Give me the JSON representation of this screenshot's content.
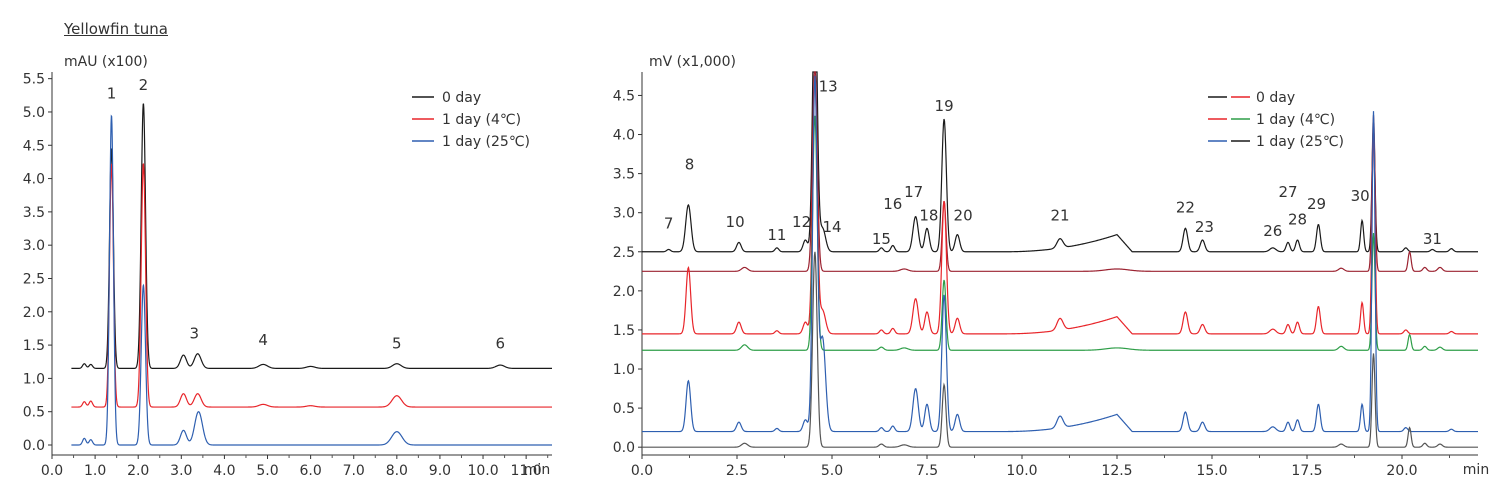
{
  "figure_title": "Yellowfin tuna",
  "chart_data": [
    {
      "type": "line",
      "ylabel": "mAU (x100)",
      "x_unit": "min",
      "xlim": [
        0.0,
        11.6
      ],
      "ylim": [
        -0.15,
        5.6
      ],
      "x_ticks": [
        "0.0",
        "1.0",
        "2.0",
        "3.0",
        "4.0",
        "5.0",
        "6.0",
        "7.0",
        "8.0",
        "9.0",
        "10.0",
        "11.0"
      ],
      "y_ticks": [
        "0.0",
        "0.5",
        "1.0",
        "1.5",
        "2.0",
        "2.5",
        "3.0",
        "3.5",
        "4.0",
        "4.5",
        "5.0",
        "5.5"
      ],
      "legend": {
        "position": "top-right",
        "entries": [
          {
            "label": "0 day",
            "color": "#1a1a1a"
          },
          {
            "label": "1 day (4℃)",
            "color": "#e8252a"
          },
          {
            "label": "1 day (25℃)",
            "color": "#2e5fb0"
          }
        ]
      },
      "peak_labels": [
        {
          "text": "1",
          "x": 1.38,
          "y": 5.2
        },
        {
          "text": "2",
          "x": 2.12,
          "y": 5.33
        },
        {
          "text": "3",
          "x": 3.3,
          "y": 1.6
        },
        {
          "text": "4",
          "x": 4.9,
          "y": 1.5
        },
        {
          "text": "5",
          "x": 8.0,
          "y": 1.45
        },
        {
          "text": "6",
          "x": 10.4,
          "y": 1.45
        }
      ],
      "series": [
        {
          "name": "0 day",
          "color": "#1a1a1a",
          "baseline": 1.15,
          "x_start": 0.45,
          "x_end": 11.6,
          "peaks": [
            [
              0.75,
              0.07,
              0.04
            ],
            [
              0.9,
              0.06,
              0.04
            ],
            [
              1.38,
              3.3,
              0.045
            ],
            [
              2.12,
              3.98,
              0.05
            ],
            [
              3.05,
              0.2,
              0.07
            ],
            [
              3.38,
              0.22,
              0.08
            ],
            [
              4.9,
              0.06,
              0.1
            ],
            [
              6.0,
              0.03,
              0.1
            ],
            [
              8.0,
              0.07,
              0.1
            ],
            [
              10.4,
              0.05,
              0.1
            ]
          ]
        },
        {
          "name": "1 day (4℃)",
          "color": "#e8252a",
          "baseline": 0.57,
          "x_start": 0.45,
          "x_end": 11.6,
          "peaks": [
            [
              0.75,
              0.08,
              0.04
            ],
            [
              0.9,
              0.09,
              0.04
            ],
            [
              1.38,
              3.65,
              0.045
            ],
            [
              2.12,
              3.66,
              0.05
            ],
            [
              3.05,
              0.2,
              0.07
            ],
            [
              3.38,
              0.2,
              0.08
            ],
            [
              4.9,
              0.04,
              0.1
            ],
            [
              6.0,
              0.02,
              0.1
            ],
            [
              8.0,
              0.17,
              0.11
            ]
          ]
        },
        {
          "name": "1 day (25℃)",
          "color": "#2e5fb0",
          "baseline": 0.0,
          "x_start": 0.45,
          "x_end": 11.6,
          "peaks": [
            [
              0.75,
              0.1,
              0.04
            ],
            [
              0.9,
              0.08,
              0.04
            ],
            [
              1.38,
              4.95,
              0.045
            ],
            [
              2.12,
              2.4,
              0.05
            ],
            [
              3.05,
              0.22,
              0.07
            ],
            [
              3.4,
              0.5,
              0.09
            ],
            [
              8.0,
              0.2,
              0.12
            ]
          ]
        }
      ]
    },
    {
      "type": "line",
      "ylabel": "mV (x1,000)",
      "x_unit": "min",
      "xlim": [
        0.0,
        22.0
      ],
      "ylim": [
        -0.1,
        4.8
      ],
      "x_ticks": [
        "0.0",
        "2.5",
        "5.0",
        "7.5",
        "10.0",
        "12.5",
        "15.0",
        "17.5",
        "20.0"
      ],
      "y_ticks": [
        "0.0",
        "0.5",
        "1.0",
        "1.5",
        "2.0",
        "2.5",
        "3.0",
        "3.5",
        "4.0",
        "4.5"
      ],
      "legend": {
        "position": "top-right",
        "entries": [
          {
            "label": "0 day",
            "colors": [
              "#1a1a1a",
              "#e8252a"
            ]
          },
          {
            "label": "1 day (4℃)",
            "colors": [
              "#e8252a",
              "#2e9e48"
            ]
          },
          {
            "label": "1 day (25℃)",
            "colors": [
              "#2e5fb0",
              "#1a1a1a"
            ]
          }
        ]
      },
      "peak_labels": [
        {
          "text": "7",
          "x": 0.7,
          "y": 2.8
        },
        {
          "text": "8",
          "x": 1.25,
          "y": 3.55
        },
        {
          "text": "10",
          "x": 2.45,
          "y": 2.82
        },
        {
          "text": "11",
          "x": 3.55,
          "y": 2.65
        },
        {
          "text": "12",
          "x": 4.2,
          "y": 2.82
        },
        {
          "text": "13",
          "x": 4.9,
          "y": 4.55
        },
        {
          "text": "14",
          "x": 5.0,
          "y": 2.75
        },
        {
          "text": "15",
          "x": 6.3,
          "y": 2.6
        },
        {
          "text": "16",
          "x": 6.6,
          "y": 3.05
        },
        {
          "text": "17",
          "x": 7.15,
          "y": 3.2
        },
        {
          "text": "18",
          "x": 7.55,
          "y": 2.9
        },
        {
          "text": "19",
          "x": 7.95,
          "y": 4.3
        },
        {
          "text": "20",
          "x": 8.45,
          "y": 2.9
        },
        {
          "text": "21",
          "x": 11.0,
          "y": 2.9
        },
        {
          "text": "22",
          "x": 14.3,
          "y": 3.0
        },
        {
          "text": "23",
          "x": 14.8,
          "y": 2.75
        },
        {
          "text": "26",
          "x": 16.6,
          "y": 2.7
        },
        {
          "text": "27",
          "x": 17.0,
          "y": 3.2
        },
        {
          "text": "28",
          "x": 17.25,
          "y": 2.85
        },
        {
          "text": "29",
          "x": 17.75,
          "y": 3.05
        },
        {
          "text": "30",
          "x": 18.9,
          "y": 3.15
        },
        {
          "text": "31",
          "x": 20.8,
          "y": 2.6
        }
      ],
      "series": [
        {
          "name": "0 day (a)",
          "color": "#1a1a1a",
          "baseline": 2.5,
          "x_start": 0.0,
          "x_end": 22.0,
          "hump": {
            "start": 9.5,
            "peak": 12.5,
            "end": 12.9,
            "height": 0.22
          },
          "peaks": [
            [
              0.7,
              0.03,
              0.05
            ],
            [
              1.22,
              0.6,
              0.07
            ],
            [
              2.55,
              0.12,
              0.06
            ],
            [
              3.55,
              0.05,
              0.05
            ],
            [
              4.3,
              0.15,
              0.06
            ],
            [
              4.55,
              3.5,
              0.06
            ],
            [
              4.75,
              0.3,
              0.08
            ],
            [
              6.3,
              0.05,
              0.05
            ],
            [
              6.6,
              0.08,
              0.05
            ],
            [
              7.2,
              0.45,
              0.07
            ],
            [
              7.5,
              0.3,
              0.06
            ],
            [
              7.95,
              1.7,
              0.06
            ],
            [
              8.3,
              0.22,
              0.06
            ],
            [
              11.0,
              0.12,
              0.08
            ],
            [
              14.3,
              0.3,
              0.06
            ],
            [
              14.75,
              0.15,
              0.06
            ],
            [
              16.6,
              0.05,
              0.08
            ],
            [
              17.0,
              0.12,
              0.05
            ],
            [
              17.25,
              0.15,
              0.05
            ],
            [
              17.8,
              0.35,
              0.05
            ],
            [
              18.95,
              0.4,
              0.04
            ],
            [
              19.25,
              1.6,
              0.04
            ],
            [
              20.1,
              0.05,
              0.05
            ],
            [
              20.8,
              0.03,
              0.05
            ],
            [
              21.3,
              0.04,
              0.05
            ]
          ]
        },
        {
          "name": "0 day (b)",
          "color": "#9b2230",
          "baseline": 2.25,
          "x_start": 0.0,
          "x_end": 22.0,
          "peaks": [
            [
              2.7,
              0.05,
              0.08
            ],
            [
              4.55,
              2.7,
              0.06
            ],
            [
              6.9,
              0.03,
              0.1
            ],
            [
              7.95,
              0.9,
              0.05
            ],
            [
              12.5,
              0.03,
              0.3
            ],
            [
              18.4,
              0.04,
              0.07
            ],
            [
              19.25,
              2.0,
              0.04
            ],
            [
              20.2,
              0.25,
              0.04
            ],
            [
              20.6,
              0.05,
              0.05
            ],
            [
              21.0,
              0.05,
              0.06
            ]
          ]
        },
        {
          "name": "1 day (4℃) (a)",
          "color": "#e8252a",
          "baseline": 1.45,
          "x_start": 0.0,
          "x_end": 22.0,
          "hump": {
            "start": 9.5,
            "peak": 12.5,
            "end": 12.9,
            "height": 0.22
          },
          "peaks": [
            [
              1.22,
              0.85,
              0.06
            ],
            [
              2.55,
              0.15,
              0.06
            ],
            [
              3.55,
              0.04,
              0.05
            ],
            [
              4.3,
              0.15,
              0.06
            ],
            [
              4.55,
              3.3,
              0.06
            ],
            [
              4.75,
              0.3,
              0.08
            ],
            [
              6.3,
              0.05,
              0.05
            ],
            [
              6.6,
              0.07,
              0.05
            ],
            [
              7.2,
              0.45,
              0.07
            ],
            [
              7.5,
              0.28,
              0.06
            ],
            [
              7.95,
              1.7,
              0.06
            ],
            [
              8.3,
              0.2,
              0.06
            ],
            [
              11.0,
              0.15,
              0.08
            ],
            [
              14.3,
              0.28,
              0.06
            ],
            [
              14.75,
              0.12,
              0.06
            ],
            [
              16.6,
              0.06,
              0.08
            ],
            [
              17.0,
              0.12,
              0.05
            ],
            [
              17.25,
              0.15,
              0.05
            ],
            [
              17.8,
              0.35,
              0.05
            ],
            [
              18.95,
              0.4,
              0.04
            ],
            [
              19.25,
              2.6,
              0.04
            ],
            [
              20.1,
              0.05,
              0.05
            ],
            [
              21.3,
              0.03,
              0.05
            ]
          ]
        },
        {
          "name": "1 day (4℃) (b)",
          "color": "#2e9e48",
          "baseline": 1.24,
          "x_start": 0.0,
          "x_end": 22.0,
          "peaks": [
            [
              2.7,
              0.07,
              0.08
            ],
            [
              4.55,
              3.0,
              0.06
            ],
            [
              6.3,
              0.04,
              0.06
            ],
            [
              6.9,
              0.03,
              0.1
            ],
            [
              7.95,
              0.9,
              0.05
            ],
            [
              12.5,
              0.03,
              0.3
            ],
            [
              18.4,
              0.05,
              0.07
            ],
            [
              19.25,
              1.5,
              0.04
            ],
            [
              20.2,
              0.2,
              0.04
            ],
            [
              20.6,
              0.05,
              0.05
            ],
            [
              21.0,
              0.04,
              0.06
            ]
          ]
        },
        {
          "name": "1 day (25℃) (a)",
          "color": "#2e5fb0",
          "baseline": 0.2,
          "x_start": 0.0,
          "x_end": 22.0,
          "hump": {
            "start": 9.5,
            "peak": 12.5,
            "end": 12.9,
            "height": 0.22
          },
          "peaks": [
            [
              1.22,
              0.65,
              0.06
            ],
            [
              2.55,
              0.12,
              0.06
            ],
            [
              3.55,
              0.04,
              0.05
            ],
            [
              4.3,
              0.15,
              0.06
            ],
            [
              4.55,
              4.5,
              0.06
            ],
            [
              4.75,
              1.2,
              0.08
            ],
            [
              6.3,
              0.05,
              0.05
            ],
            [
              6.6,
              0.07,
              0.05
            ],
            [
              7.2,
              0.55,
              0.07
            ],
            [
              7.5,
              0.35,
              0.06
            ],
            [
              7.95,
              1.75,
              0.06
            ],
            [
              8.3,
              0.22,
              0.06
            ],
            [
              11.0,
              0.15,
              0.08
            ],
            [
              14.3,
              0.25,
              0.06
            ],
            [
              14.75,
              0.12,
              0.06
            ],
            [
              16.6,
              0.06,
              0.08
            ],
            [
              17.0,
              0.12,
              0.05
            ],
            [
              17.25,
              0.15,
              0.05
            ],
            [
              17.8,
              0.35,
              0.05
            ],
            [
              18.95,
              0.35,
              0.04
            ],
            [
              19.25,
              4.1,
              0.04
            ],
            [
              20.1,
              0.05,
              0.05
            ],
            [
              21.3,
              0.03,
              0.05
            ]
          ]
        },
        {
          "name": "1 day (25℃) (b)",
          "color": "#555555",
          "baseline": 0.0,
          "x_start": 0.0,
          "x_end": 22.0,
          "peaks": [
            [
              2.7,
              0.05,
              0.08
            ],
            [
              4.55,
              2.5,
              0.06
            ],
            [
              6.3,
              0.04,
              0.06
            ],
            [
              6.9,
              0.03,
              0.1
            ],
            [
              7.95,
              0.8,
              0.05
            ],
            [
              18.4,
              0.04,
              0.07
            ],
            [
              19.25,
              1.2,
              0.04
            ],
            [
              20.2,
              0.25,
              0.04
            ],
            [
              20.6,
              0.05,
              0.05
            ],
            [
              21.0,
              0.04,
              0.06
            ]
          ]
        }
      ]
    }
  ]
}
